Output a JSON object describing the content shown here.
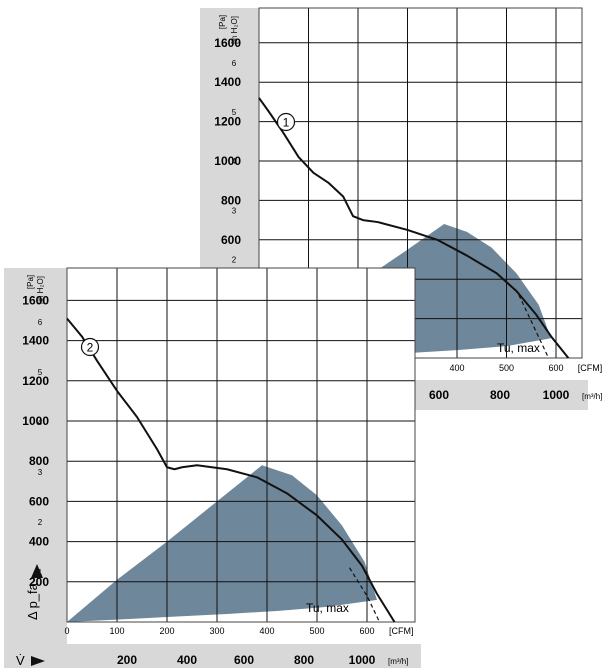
{
  "chart_data": [
    {
      "type": "line",
      "curve_label": "1",
      "x_unit_primary": "[CFM]",
      "x_unit_secondary": "[m³/h]",
      "y_unit_primary": "[Pa]",
      "y_unit_secondary": "[in H₂O]",
      "xlabel": "V̇",
      "ylabel": "Δ p_fa",
      "xlim_cfm": [
        0,
        640
      ],
      "ylim_pa": [
        0,
        1720
      ],
      "grid": true,
      "cfm_ticks": [
        "0",
        "100",
        "200",
        "300",
        "400",
        "500",
        "600"
      ],
      "m3h_ticks": [
        "200",
        "400",
        "600",
        "800",
        "1000"
      ],
      "pa_ticks": [
        "200",
        "400",
        "600",
        "800",
        "1000",
        "1200",
        "1400",
        "1600"
      ],
      "inh2o_ticks": [
        "1",
        "2",
        "3",
        "4",
        "5",
        "6"
      ],
      "annotation": "Tu, max",
      "series": [
        {
          "name": "1",
          "x": [
            0,
            20,
            50,
            80,
            110,
            140,
            170,
            190,
            210,
            240,
            300,
            360,
            420,
            480,
            520,
            560,
            590,
            625
          ],
          "y": [
            1320,
            1250,
            1140,
            1020,
            940,
            890,
            820,
            720,
            700,
            690,
            650,
            600,
            520,
            430,
            340,
            220,
            110,
            0
          ]
        }
      ],
      "operating_area": {
        "x": [
          0,
          100,
          200,
          300,
          374,
          420,
          470,
          520,
          565,
          590,
          500,
          400,
          300,
          200,
          100,
          0
        ],
        "y": [
          0,
          200,
          380,
          550,
          680,
          640,
          560,
          430,
          270,
          100,
          60,
          40,
          25,
          15,
          8,
          0
        ]
      },
      "tu_max_line": {
        "x": [
          525,
          555,
          585
        ],
        "y": [
          320,
          160,
          0
        ]
      }
    },
    {
      "type": "line",
      "curve_label": "2",
      "x_unit_primary": "[CFM]",
      "x_unit_secondary": "[m³/h]",
      "y_unit_primary": "[Pa]",
      "y_unit_secondary": "[in H₂O]",
      "xlabel": "V̇",
      "ylabel": "Δ p_fa",
      "xlim_cfm": [
        0,
        660
      ],
      "ylim_pa": [
        0,
        1720
      ],
      "grid": true,
      "cfm_ticks": [
        "0",
        "100",
        "200",
        "300",
        "400",
        "500",
        "600"
      ],
      "m3h_ticks": [
        "200",
        "400",
        "600",
        "800",
        "1000"
      ],
      "pa_ticks": [
        "200",
        "400",
        "600",
        "800",
        "1000",
        "1200",
        "1400",
        "1600"
      ],
      "inh2o_ticks": [
        "1",
        "2",
        "3",
        "4",
        "5",
        "6"
      ],
      "annotation": "Tu, max",
      "series": [
        {
          "name": "2",
          "x": [
            0,
            30,
            60,
            100,
            140,
            180,
            200,
            215,
            230,
            260,
            320,
            380,
            440,
            500,
            550,
            590,
            620,
            655
          ],
          "y": [
            1510,
            1420,
            1300,
            1150,
            1020,
            860,
            770,
            760,
            770,
            780,
            760,
            720,
            640,
            530,
            410,
            280,
            140,
            0
          ]
        }
      ],
      "operating_area": {
        "x": [
          0,
          100,
          200,
          300,
          390,
          450,
          500,
          550,
          595,
          620,
          520,
          420,
          320,
          200,
          100,
          0
        ],
        "y": [
          0,
          210,
          400,
          600,
          780,
          730,
          630,
          480,
          300,
          110,
          75,
          55,
          40,
          25,
          12,
          0
        ]
      },
      "tu_max_line": {
        "x": [
          565,
          600,
          625
        ],
        "y": [
          270,
          130,
          0
        ]
      }
    }
  ],
  "colors": {
    "axis_band": "#d8d8d8",
    "grid": "#111111",
    "area_fill": "#6f879a",
    "curve": "#111111"
  }
}
